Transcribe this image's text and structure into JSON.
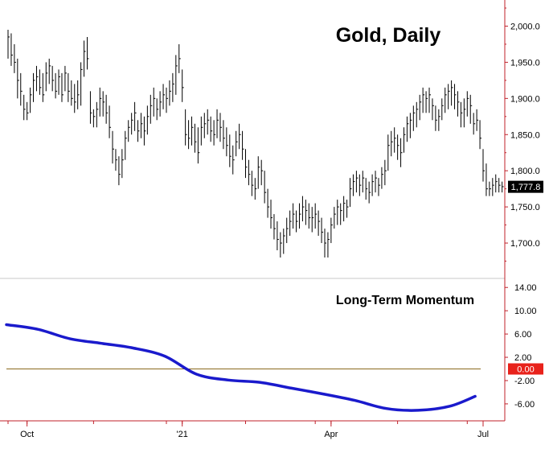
{
  "chart_data": [
    {
      "type": "ohlc",
      "title": "Gold, Daily",
      "ylim": [
        1660,
        2025
      ],
      "y_ticks": [
        "2,000.0",
        "1,950.0",
        "1,900.0",
        "1,850.0",
        "1,800.0",
        "1,750.0",
        "1,700.0"
      ],
      "y_tick_values": [
        2000,
        1950,
        1900,
        1850,
        1800,
        1750,
        1700
      ],
      "last_price_label": "1,777.8",
      "last_price": 1777.8,
      "x_tick_labels": [
        "Oct",
        "'21",
        "Apr",
        "Jul"
      ],
      "x_tick_bar_index": [
        6,
        55,
        102,
        150
      ],
      "bars": [
        [
          1995,
          1955,
          1985
        ],
        [
          1990,
          1945,
          1960
        ],
        [
          1975,
          1935,
          1950
        ],
        [
          1955,
          1900,
          1925
        ],
        [
          1935,
          1890,
          1910
        ],
        [
          1905,
          1870,
          1885
        ],
        [
          1895,
          1870,
          1880
        ],
        [
          1915,
          1880,
          1905
        ],
        [
          1935,
          1895,
          1925
        ],
        [
          1945,
          1910,
          1930
        ],
        [
          1940,
          1905,
          1915
        ],
        [
          1935,
          1895,
          1905
        ],
        [
          1950,
          1910,
          1935
        ],
        [
          1955,
          1920,
          1945
        ],
        [
          1945,
          1910,
          1925
        ],
        [
          1935,
          1900,
          1910
        ],
        [
          1940,
          1905,
          1930
        ],
        [
          1935,
          1895,
          1905
        ],
        [
          1945,
          1910,
          1935
        ],
        [
          1935,
          1895,
          1910
        ],
        [
          1925,
          1890,
          1900
        ],
        [
          1920,
          1880,
          1895
        ],
        [
          1925,
          1885,
          1905
        ],
        [
          1950,
          1890,
          1940
        ],
        [
          1980,
          1930,
          1965
        ],
        [
          1985,
          1940,
          1955
        ],
        [
          1910,
          1865,
          1880
        ],
        [
          1885,
          1860,
          1875
        ],
        [
          1895,
          1860,
          1885
        ],
        [
          1915,
          1875,
          1900
        ],
        [
          1910,
          1875,
          1895
        ],
        [
          1905,
          1865,
          1880
        ],
        [
          1890,
          1845,
          1860
        ],
        [
          1855,
          1810,
          1830
        ],
        [
          1830,
          1800,
          1815
        ],
        [
          1820,
          1780,
          1795
        ],
        [
          1830,
          1790,
          1815
        ],
        [
          1855,
          1815,
          1845
        ],
        [
          1870,
          1840,
          1860
        ],
        [
          1880,
          1850,
          1870
        ],
        [
          1895,
          1855,
          1880
        ],
        [
          1870,
          1840,
          1855
        ],
        [
          1880,
          1845,
          1865
        ],
        [
          1875,
          1835,
          1855
        ],
        [
          1890,
          1850,
          1875
        ],
        [
          1905,
          1865,
          1890
        ],
        [
          1915,
          1875,
          1900
        ],
        [
          1900,
          1870,
          1885
        ],
        [
          1910,
          1875,
          1895
        ],
        [
          1920,
          1885,
          1905
        ],
        [
          1915,
          1880,
          1900
        ],
        [
          1925,
          1890,
          1910
        ],
        [
          1935,
          1895,
          1920
        ],
        [
          1960,
          1905,
          1945
        ],
        [
          1975,
          1935,
          1955
        ],
        [
          1940,
          1895,
          1915
        ],
        [
          1885,
          1835,
          1850
        ],
        [
          1870,
          1830,
          1845
        ],
        [
          1875,
          1835,
          1860
        ],
        [
          1865,
          1825,
          1840
        ],
        [
          1860,
          1810,
          1825
        ],
        [
          1875,
          1835,
          1860
        ],
        [
          1880,
          1845,
          1865
        ],
        [
          1885,
          1850,
          1870
        ],
        [
          1875,
          1840,
          1855
        ],
        [
          1870,
          1835,
          1850
        ],
        [
          1885,
          1845,
          1870
        ],
        [
          1880,
          1840,
          1860
        ],
        [
          1870,
          1830,
          1845
        ],
        [
          1860,
          1820,
          1835
        ],
        [
          1850,
          1805,
          1820
        ],
        [
          1835,
          1795,
          1815
        ],
        [
          1855,
          1820,
          1840
        ],
        [
          1865,
          1830,
          1850
        ],
        [
          1855,
          1815,
          1830
        ],
        [
          1830,
          1790,
          1805
        ],
        [
          1815,
          1780,
          1795
        ],
        [
          1800,
          1765,
          1780
        ],
        [
          1790,
          1760,
          1775
        ],
        [
          1820,
          1775,
          1805
        ],
        [
          1815,
          1780,
          1800
        ],
        [
          1800,
          1755,
          1770
        ],
        [
          1775,
          1735,
          1750
        ],
        [
          1760,
          1720,
          1735
        ],
        [
          1740,
          1705,
          1720
        ],
        [
          1730,
          1690,
          1705
        ],
        [
          1715,
          1680,
          1700
        ],
        [
          1720,
          1685,
          1710
        ],
        [
          1735,
          1700,
          1720
        ],
        [
          1745,
          1710,
          1730
        ],
        [
          1755,
          1720,
          1740
        ],
        [
          1745,
          1715,
          1730
        ],
        [
          1755,
          1720,
          1740
        ],
        [
          1765,
          1730,
          1750
        ],
        [
          1760,
          1725,
          1745
        ],
        [
          1755,
          1720,
          1735
        ],
        [
          1750,
          1715,
          1735
        ],
        [
          1755,
          1720,
          1740
        ],
        [
          1745,
          1710,
          1730
        ],
        [
          1735,
          1700,
          1715
        ],
        [
          1720,
          1680,
          1700
        ],
        [
          1715,
          1680,
          1705
        ],
        [
          1735,
          1700,
          1725
        ],
        [
          1750,
          1720,
          1740
        ],
        [
          1760,
          1725,
          1750
        ],
        [
          1755,
          1725,
          1745
        ],
        [
          1765,
          1730,
          1755
        ],
        [
          1760,
          1735,
          1750
        ],
        [
          1790,
          1750,
          1775
        ],
        [
          1795,
          1765,
          1785
        ],
        [
          1800,
          1770,
          1790
        ],
        [
          1795,
          1765,
          1780
        ],
        [
          1800,
          1770,
          1790
        ],
        [
          1790,
          1760,
          1775
        ],
        [
          1785,
          1755,
          1770
        ],
        [
          1795,
          1765,
          1785
        ],
        [
          1800,
          1770,
          1790
        ],
        [
          1790,
          1765,
          1780
        ],
        [
          1805,
          1775,
          1795
        ],
        [
          1815,
          1780,
          1800
        ],
        [
          1850,
          1800,
          1835
        ],
        [
          1855,
          1820,
          1840
        ],
        [
          1860,
          1825,
          1845
        ],
        [
          1850,
          1815,
          1835
        ],
        [
          1845,
          1805,
          1825
        ],
        [
          1860,
          1825,
          1850
        ],
        [
          1875,
          1840,
          1865
        ],
        [
          1880,
          1845,
          1870
        ],
        [
          1890,
          1855,
          1880
        ],
        [
          1895,
          1860,
          1885
        ],
        [
          1905,
          1870,
          1895
        ],
        [
          1915,
          1880,
          1905
        ],
        [
          1910,
          1880,
          1900
        ],
        [
          1915,
          1880,
          1905
        ],
        [
          1900,
          1870,
          1890
        ],
        [
          1890,
          1855,
          1870
        ],
        [
          1885,
          1855,
          1875
        ],
        [
          1900,
          1870,
          1890
        ],
        [
          1915,
          1880,
          1905
        ],
        [
          1920,
          1885,
          1910
        ],
        [
          1925,
          1890,
          1915
        ],
        [
          1920,
          1885,
          1905
        ],
        [
          1910,
          1875,
          1895
        ],
        [
          1895,
          1860,
          1880
        ],
        [
          1900,
          1860,
          1885
        ],
        [
          1910,
          1875,
          1900
        ],
        [
          1905,
          1865,
          1890
        ],
        [
          1880,
          1850,
          1865
        ],
        [
          1885,
          1855,
          1870
        ],
        [
          1870,
          1830,
          1845
        ],
        [
          1830,
          1785,
          1800
        ],
        [
          1810,
          1765,
          1775
        ],
        [
          1785,
          1765,
          1775
        ],
        [
          1790,
          1765,
          1780
        ],
        [
          1795,
          1770,
          1785
        ],
        [
          1790,
          1770,
          1780
        ],
        [
          1785,
          1770,
          1778
        ]
      ]
    },
    {
      "type": "line",
      "title": "Long-Term Momentum",
      "ylim": [
        -8.5,
        15
      ],
      "y_ticks": [
        "14.00",
        "10.00",
        "6.00",
        "2.00",
        "-2.00",
        "-6.00"
      ],
      "y_tick_values": [
        14,
        10,
        6,
        2,
        -2,
        -6
      ],
      "zero_label": "0.00",
      "zero_value": 0,
      "colors": {
        "line": "#1a1acc",
        "zero_line": "#8b6a1e",
        "zero_badge": "#e8221b",
        "axis": "#c0202a"
      },
      "series": [
        {
          "x": [
            0,
            10,
            20,
            30,
            40,
            50,
            60,
            70,
            80,
            90,
            100,
            110,
            120,
            130,
            140,
            148
          ],
          "values": [
            7.6,
            6.8,
            5.2,
            4.4,
            3.6,
            2.2,
            -0.9,
            -1.9,
            -2.3,
            -3.3,
            -4.3,
            -5.4,
            -6.8,
            -7.1,
            -6.4,
            -4.7
          ]
        }
      ]
    }
  ]
}
